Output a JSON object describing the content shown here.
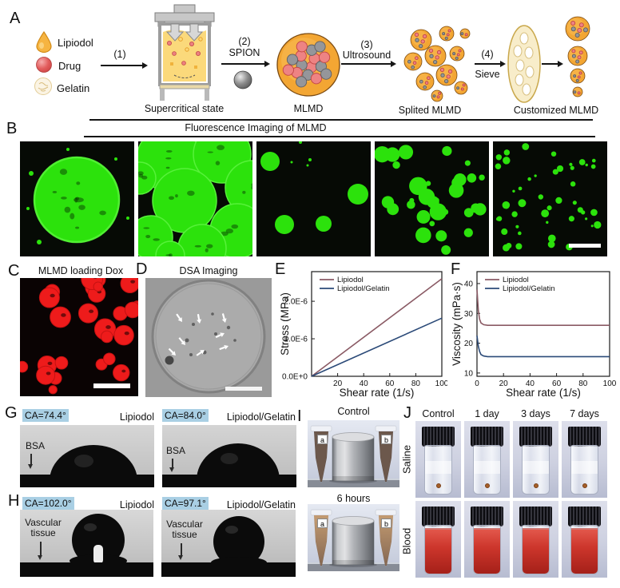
{
  "panels": {
    "A": {
      "label": "A",
      "legend": [
        {
          "icon": "lipiodol-droplet",
          "label": "Lipiodol"
        },
        {
          "icon": "drug-sphere",
          "label": "Drug"
        },
        {
          "icon": "gelatin-particle",
          "label": "Gelatin"
        }
      ],
      "steps": [
        {
          "num": "(1)",
          "label": ""
        },
        {
          "num": "(2)",
          "label": "SPION"
        },
        {
          "num": "(3)",
          "label": "Ultrosound"
        },
        {
          "num": "(4)",
          "label": "Sieve"
        }
      ],
      "captions": [
        "Supercritical state",
        "MLMD",
        "Splited MLMD",
        "Customized MLMD"
      ]
    },
    "B": {
      "label": "B",
      "title": "Fluorescence Imaging of MLMD"
    },
    "C": {
      "label": "C",
      "title": "MLMD loading Dox"
    },
    "D": {
      "label": "D",
      "title": "DSA Imaging"
    },
    "E": {
      "label": "E"
    },
    "F": {
      "label": "F"
    },
    "G": {
      "label": "G",
      "items": [
        {
          "ca": "CA=74.4°",
          "material": "Lipiodol",
          "surface": "BSA"
        },
        {
          "ca": "CA=84.0°",
          "material": "Lipiodol/Gelatin",
          "surface": "BSA"
        }
      ]
    },
    "H": {
      "label": "H",
      "items": [
        {
          "ca": "CA=102.0°",
          "material": "Lipiodol",
          "surface": "Vascular tissue"
        },
        {
          "ca": "CA=97.1°",
          "material": "Lipiodol/Gelatin",
          "surface": "Vascular tissue"
        }
      ]
    },
    "I": {
      "label": "I",
      "conditions": [
        "Control",
        "6 hours"
      ],
      "tube_labels": [
        "a",
        "b"
      ]
    },
    "J": {
      "label": "J",
      "columns": [
        "Control",
        "1 day",
        "3 days",
        "7 days"
      ],
      "rows": [
        "Saline",
        "Blood"
      ]
    }
  },
  "chart_data": [
    {
      "panel": "E",
      "type": "line",
      "title": "",
      "x_label": "Shear rate (1/s)",
      "y_label": "Stress (MPa)",
      "xlim": [
        0,
        100
      ],
      "ylim": [
        0,
        2.79e-06
      ],
      "x_ticks": [
        20,
        40,
        60,
        80,
        100
      ],
      "y_tick_values": [
        0,
        1e-06,
        2e-06
      ],
      "y_ticks": [
        "0.0E+0",
        "1.0E-6",
        "2.0E-6"
      ],
      "grid": false,
      "legend_position": "top-left",
      "series": [
        {
          "name": "Lipiodol",
          "color": "#8a5a64",
          "points": [
            [
              0,
              0
            ],
            [
              100,
              2.6e-06
            ]
          ]
        },
        {
          "name": "Lipiodol/Gelatin",
          "color": "#2b4a78",
          "points": [
            [
              0,
              0
            ],
            [
              100,
              1.55e-06
            ]
          ]
        }
      ]
    },
    {
      "panel": "F",
      "type": "line",
      "title": "",
      "x_label": "Shear rate (1/s)",
      "y_label": "Viscosity (mPa·s)",
      "xlim": [
        0,
        100
      ],
      "ylim": [
        8.9,
        44
      ],
      "x_ticks": [
        0,
        20,
        40,
        60,
        80,
        100
      ],
      "y_tick_values": [
        10,
        20,
        30,
        40
      ],
      "y_ticks": [
        "10",
        "20",
        "30",
        "40"
      ],
      "grid": false,
      "legend_position": "top-left",
      "series": [
        {
          "name": "Lipiodol",
          "color": "#8a5a64",
          "points": [
            [
              0,
              38
            ],
            [
              1,
              31
            ],
            [
              2,
              28
            ],
            [
              3,
              26.8
            ],
            [
              5,
              26.2
            ],
            [
              8,
              26
            ],
            [
              15,
              26
            ],
            [
              100,
              26
            ]
          ]
        },
        {
          "name": "Lipiodol/Gelatin",
          "color": "#2b4a78",
          "points": [
            [
              0,
              22.5
            ],
            [
              1,
              19
            ],
            [
              2,
              17.2
            ],
            [
              3,
              16.2
            ],
            [
              5,
              15.7
            ],
            [
              8,
              15.5
            ],
            [
              15,
              15.5
            ],
            [
              100,
              15.5
            ]
          ]
        }
      ]
    }
  ],
  "colors": {
    "fluorescence_green": "#2ce20c",
    "dox_red": "#ee1b1b",
    "series_lipiodol": "#8a5a64",
    "series_lipiodol_gelatin": "#2b4a78",
    "ca_highlight_blue": "#a9cfe4",
    "mlmd_orange": "#f3a633",
    "drug_red": "#ee8383",
    "spion_gray": "#95969a"
  }
}
